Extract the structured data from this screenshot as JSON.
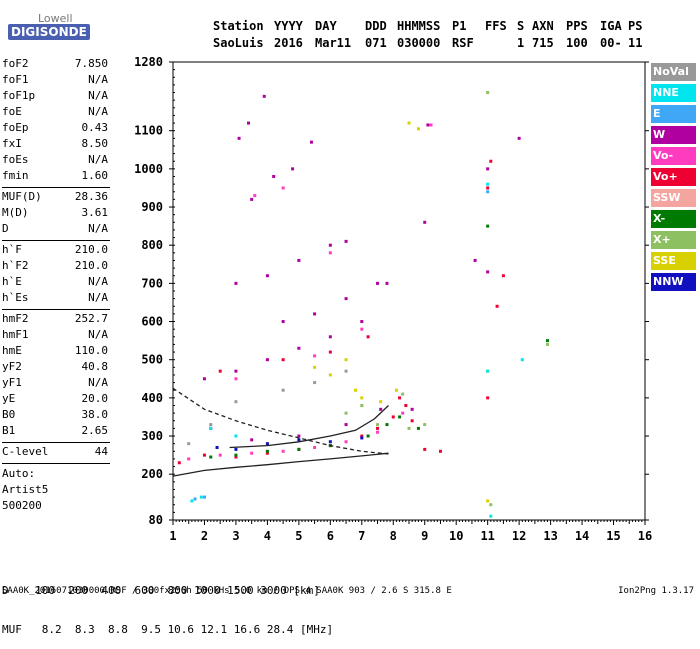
{
  "logo": {
    "top": "Lowell",
    "bottom": "DIGISONDE"
  },
  "header": {
    "labels": [
      "Station",
      "YYYY",
      "DAY",
      "DDD",
      "HHMMSS",
      "P1",
      "FFS",
      "S",
      "AXN",
      "PPS",
      "IGA",
      "PS"
    ],
    "values": [
      "SaoLuis",
      "2016",
      "Mar11",
      "071",
      "030000",
      "RSF",
      "",
      "1",
      "715",
      "100",
      "00-",
      "11"
    ]
  },
  "params": {
    "group1": [
      {
        "name": "foF2",
        "value": "7.850"
      },
      {
        "name": "foF1",
        "value": "N/A"
      },
      {
        "name": "foF1p",
        "value": "N/A"
      },
      {
        "name": "foE",
        "value": "N/A"
      },
      {
        "name": "foEp",
        "value": "0.43"
      },
      {
        "name": "fxI",
        "value": "8.50"
      },
      {
        "name": "foEs",
        "value": "N/A"
      },
      {
        "name": "fmin",
        "value": "1.60"
      }
    ],
    "group2": [
      {
        "name": "MUF(D)",
        "value": "28.36"
      },
      {
        "name": "M(D)",
        "value": "3.61"
      },
      {
        "name": "D",
        "value": "N/A"
      }
    ],
    "group3": [
      {
        "name": "h`F",
        "value": "210.0"
      },
      {
        "name": "h`F2",
        "value": "210.0"
      },
      {
        "name": "h`E",
        "value": "N/A"
      },
      {
        "name": "h`Es",
        "value": "N/A"
      }
    ],
    "group4": [
      {
        "name": "hmF2",
        "value": "252.7"
      },
      {
        "name": "hmF1",
        "value": "N/A"
      },
      {
        "name": "hmE",
        "value": "110.0"
      },
      {
        "name": "yF2",
        "value": "40.8"
      },
      {
        "name": "yF1",
        "value": "N/A"
      },
      {
        "name": "yE",
        "value": "20.0"
      },
      {
        "name": "B0",
        "value": "38.0"
      },
      {
        "name": "B1",
        "value": "2.65"
      }
    ],
    "clevel": {
      "name": "C-level",
      "value": "44"
    },
    "auto": [
      "Auto:",
      "Artist5",
      "500200"
    ]
  },
  "legend": [
    {
      "label": "NoVal",
      "color": "#999999"
    },
    {
      "label": "NNE",
      "color": "#00e5ee"
    },
    {
      "label": "E",
      "color": "#3fa7f5"
    },
    {
      "label": "W",
      "color": "#b000a0"
    },
    {
      "label": "Vo-",
      "color": "#ff3cc0"
    },
    {
      "label": "Vo+",
      "color": "#ee0033"
    },
    {
      "label": "SSW",
      "color": "#f5a5a0"
    },
    {
      "label": "X-",
      "color": "#007a00"
    },
    {
      "label": "X+",
      "color": "#8dc060"
    },
    {
      "label": "SSE",
      "color": "#d8d000"
    },
    {
      "label": "NNW",
      "color": "#1010c0"
    }
  ],
  "muf_table": {
    "d_label": "D",
    "d_values": [
      "100",
      "200",
      "400",
      "600",
      "800",
      "1000",
      "1500",
      "3000"
    ],
    "d_unit": "[km]",
    "muf_label": "MUF",
    "muf_values": [
      "8.2",
      "8.3",
      "8.8",
      "9.5",
      "10.6",
      "12.1",
      "16.6",
      "28.4"
    ],
    "muf_unit": "[MHz]"
  },
  "footer": {
    "text": "SAA0K_2016071030000.RSF / 300fx256h 50 kHs 5.0 km / DPS-4 SAA0K 903 / 2.6 S 315.8 E",
    "version": "Ion2Png 1.3.17"
  },
  "chart_data": {
    "type": "scatter",
    "xlim": [
      1,
      16
    ],
    "ylim": [
      80,
      1280
    ],
    "x_ticks": [
      1,
      2,
      3,
      4,
      5,
      6,
      7,
      8,
      9,
      10,
      11,
      12,
      13,
      14,
      15,
      16
    ],
    "y_ticks": [
      80,
      200,
      300,
      400,
      500,
      600,
      700,
      800,
      900,
      1000,
      1100,
      1280
    ],
    "series": [
      {
        "color_key": "W",
        "points": [
          [
            3.1,
            1080
          ],
          [
            3.4,
            1120
          ],
          [
            3.9,
            1190
          ],
          [
            3.5,
            920
          ],
          [
            4.2,
            980
          ],
          [
            4.8,
            1000
          ],
          [
            5.4,
            1070
          ],
          [
            3.0,
            700
          ],
          [
            4.0,
            720
          ],
          [
            5.0,
            760
          ],
          [
            6.0,
            800
          ],
          [
            6.5,
            810
          ],
          [
            4.5,
            600
          ],
          [
            5.5,
            620
          ],
          [
            6.5,
            660
          ],
          [
            7.5,
            700
          ],
          [
            2.0,
            450
          ],
          [
            3.0,
            470
          ],
          [
            4.0,
            500
          ],
          [
            5.0,
            530
          ],
          [
            6.0,
            560
          ],
          [
            7.0,
            600
          ],
          [
            7.8,
            700
          ],
          [
            2.2,
            320
          ],
          [
            3.5,
            290
          ],
          [
            5.0,
            300
          ],
          [
            6.5,
            330
          ],
          [
            7.6,
            370
          ],
          [
            8.6,
            370
          ],
          [
            9.1,
            1115
          ],
          [
            12.0,
            1080
          ],
          [
            11.0,
            1000
          ],
          [
            10.6,
            760
          ],
          [
            11.0,
            730
          ],
          [
            9.0,
            860
          ]
        ]
      },
      {
        "color_key": "Vo+",
        "points": [
          [
            1.2,
            230
          ],
          [
            2.0,
            250
          ],
          [
            3.0,
            245
          ],
          [
            4.0,
            255
          ],
          [
            5.0,
            265
          ],
          [
            6.0,
            275
          ],
          [
            7.0,
            300
          ],
          [
            7.5,
            320
          ],
          [
            8.0,
            350
          ],
          [
            8.2,
            400
          ],
          [
            8.4,
            380
          ],
          [
            8.6,
            340
          ],
          [
            9.0,
            265
          ],
          [
            9.5,
            260
          ],
          [
            2.5,
            470
          ],
          [
            4.5,
            500
          ],
          [
            6.0,
            520
          ],
          [
            7.2,
            560
          ],
          [
            11.0,
            950
          ],
          [
            11.1,
            1020
          ],
          [
            11.3,
            640
          ],
          [
            11.5,
            720
          ],
          [
            11.0,
            400
          ]
        ]
      },
      {
        "color_key": "Vo-",
        "points": [
          [
            1.5,
            240
          ],
          [
            2.5,
            250
          ],
          [
            3.5,
            255
          ],
          [
            4.5,
            260
          ],
          [
            5.5,
            270
          ],
          [
            6.5,
            285
          ],
          [
            7.5,
            310
          ],
          [
            8.3,
            360
          ],
          [
            3.0,
            450
          ],
          [
            5.5,
            510
          ],
          [
            7.0,
            580
          ],
          [
            3.6,
            930
          ],
          [
            4.5,
            950
          ],
          [
            6.0,
            780
          ],
          [
            9.2,
            1115
          ]
        ]
      },
      {
        "color_key": "X-",
        "points": [
          [
            2.2,
            245
          ],
          [
            3.0,
            250
          ],
          [
            4.0,
            260
          ],
          [
            5.0,
            265
          ],
          [
            6.0,
            275
          ],
          [
            7.2,
            300
          ],
          [
            7.8,
            330
          ],
          [
            8.2,
            350
          ],
          [
            8.8,
            320
          ],
          [
            11.0,
            850
          ],
          [
            12.9,
            550
          ]
        ]
      },
      {
        "color_key": "X+",
        "points": [
          [
            7.5,
            330
          ],
          [
            8.5,
            320
          ],
          [
            9.0,
            330
          ],
          [
            8.3,
            410
          ],
          [
            7.0,
            380
          ],
          [
            6.5,
            360
          ],
          [
            11.0,
            1200
          ],
          [
            12.9,
            540
          ],
          [
            11.1,
            120
          ]
        ]
      },
      {
        "color_key": "SSE",
        "points": [
          [
            6.0,
            460
          ],
          [
            6.8,
            420
          ],
          [
            7.0,
            400
          ],
          [
            7.6,
            390
          ],
          [
            8.1,
            420
          ],
          [
            6.5,
            500
          ],
          [
            5.5,
            480
          ],
          [
            8.5,
            1120
          ],
          [
            8.8,
            1105
          ],
          [
            11.0,
            130
          ],
          [
            11.0,
            470
          ]
        ]
      },
      {
        "color_key": "NNW",
        "points": [
          [
            2.4,
            270
          ],
          [
            3.0,
            265
          ],
          [
            4.0,
            280
          ],
          [
            5.0,
            290
          ],
          [
            6.0,
            285
          ],
          [
            7.0,
            295
          ]
        ]
      },
      {
        "color_key": "NNE",
        "points": [
          [
            1.6,
            130
          ],
          [
            2.2,
            320
          ],
          [
            3.0,
            300
          ],
          [
            11.0,
            470
          ],
          [
            11.0,
            960
          ],
          [
            12.1,
            500
          ],
          [
            1.9,
            140
          ],
          [
            11.1,
            90
          ]
        ]
      },
      {
        "color_key": "E",
        "points": [
          [
            1.7,
            135
          ],
          [
            2.0,
            140
          ],
          [
            11.0,
            940
          ]
        ]
      },
      {
        "color_key": "NoVal",
        "points": [
          [
            1.5,
            280
          ],
          [
            2.2,
            330
          ],
          [
            3.0,
            390
          ],
          [
            4.5,
            420
          ],
          [
            5.5,
            440
          ],
          [
            6.5,
            470
          ]
        ]
      }
    ],
    "curves": [
      {
        "style": "solid",
        "points": [
          [
            1,
            195
          ],
          [
            2,
            210
          ],
          [
            3,
            218
          ],
          [
            4,
            225
          ],
          [
            5,
            233
          ],
          [
            6,
            240
          ],
          [
            7,
            248
          ],
          [
            7.85,
            255
          ]
        ]
      },
      {
        "style": "dashed",
        "points": [
          [
            1,
            425
          ],
          [
            2,
            370
          ],
          [
            3,
            340
          ],
          [
            4,
            315
          ],
          [
            5,
            295
          ],
          [
            6,
            275
          ],
          [
            7,
            260
          ],
          [
            7.85,
            253
          ]
        ]
      },
      {
        "style": "solid",
        "points": [
          [
            2.8,
            270
          ],
          [
            4,
            275
          ],
          [
            5,
            285
          ],
          [
            6,
            300
          ],
          [
            6.8,
            315
          ],
          [
            7.4,
            345
          ],
          [
            7.85,
            380
          ]
        ]
      }
    ]
  }
}
